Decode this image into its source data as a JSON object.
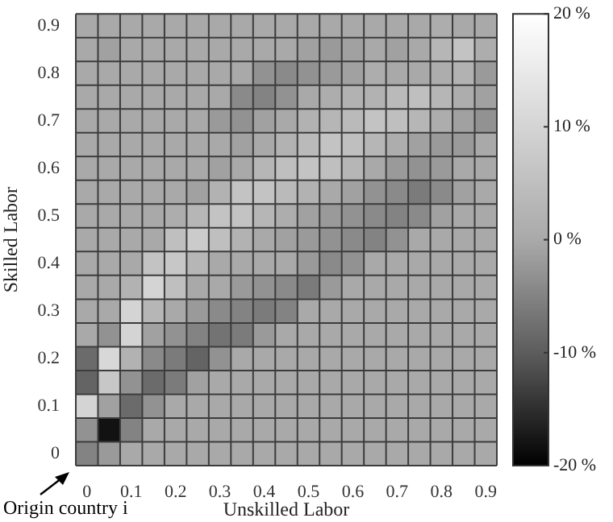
{
  "chart_data": {
    "type": "heatmap",
    "xlabel": "Unskilled Labor",
    "ylabel": "Skilled Labor",
    "annotations": [
      "Origin country i"
    ],
    "grid": true,
    "categories": [
      "0",
      null,
      "0.1",
      null,
      "0.2",
      null,
      "0.3",
      null,
      "0.4",
      null,
      "0.5",
      null,
      "0.6",
      null,
      "0.7",
      null,
      "0.8",
      null,
      "0.9"
    ],
    "y_categories": [
      "0.9",
      null,
      "0.8",
      null,
      "0.7",
      null,
      "0.6",
      null,
      "0.5",
      null,
      "0.4",
      null,
      "0.3",
      null,
      "0.2",
      null,
      "0.1",
      null,
      "0"
    ],
    "clim": [
      -20,
      20
    ],
    "cticks": [
      {
        "value": 20,
        "label": "20 %"
      },
      {
        "value": 10,
        "label": "10 %"
      },
      {
        "value": 0,
        "label": "0 %"
      },
      {
        "value": -10,
        "label": "-10 %"
      },
      {
        "value": -20,
        "label": "-20 %"
      }
    ],
    "cells": [
      [
        0,
        0,
        0,
        0,
        0,
        0,
        0,
        0,
        0,
        0,
        0,
        0,
        0,
        0,
        0,
        0,
        1,
        0,
        0
      ],
      [
        0,
        -1,
        0,
        0,
        0,
        0,
        0,
        0,
        0,
        0,
        -1,
        -2,
        -1,
        0,
        -1,
        0,
        3,
        6,
        1
      ],
      [
        0,
        0,
        0,
        0,
        0,
        0,
        0,
        0,
        -3,
        -4,
        -3,
        -2,
        -1,
        1,
        0,
        0,
        1,
        2,
        -2
      ],
      [
        0,
        0,
        0,
        0,
        0,
        0,
        0,
        -4,
        -5,
        -3,
        0,
        1,
        2,
        2,
        4,
        5,
        3,
        1,
        -1
      ],
      [
        0,
        0,
        0,
        0,
        0,
        0,
        -2,
        -3,
        -1,
        0,
        2,
        3,
        4,
        6,
        5,
        3,
        1,
        -1,
        -3
      ],
      [
        0,
        0,
        0,
        0,
        0,
        0,
        0,
        -1,
        0,
        2,
        4,
        6,
        5,
        3,
        1,
        -1,
        -2,
        -2,
        0
      ],
      [
        0,
        0,
        0,
        0,
        0,
        0,
        -1,
        0,
        3,
        5,
        6,
        5,
        3,
        0,
        -2,
        -3,
        -2,
        0,
        0
      ],
      [
        0,
        0,
        0,
        0,
        0,
        -1,
        2,
        6,
        6,
        4,
        2,
        0,
        -1,
        -3,
        -4,
        -6,
        -4,
        -1,
        0
      ],
      [
        0,
        0,
        0,
        0,
        1,
        3,
        6,
        6,
        3,
        1,
        -1,
        -2,
        -3,
        -4,
        -5,
        -4,
        -1,
        0,
        0
      ],
      [
        0,
        0,
        0,
        0,
        5,
        8,
        5,
        2,
        0,
        -1,
        -2,
        -3,
        -4,
        -5,
        -3,
        0,
        0,
        0,
        0
      ],
      [
        0,
        0,
        0,
        6,
        7,
        3,
        0,
        0,
        0,
        0,
        -2,
        -4,
        -3,
        0,
        0,
        0,
        0,
        0,
        0
      ],
      [
        0,
        0,
        2,
        10,
        5,
        0,
        0,
        -2,
        -3,
        -4,
        -6,
        -2,
        0,
        0,
        0,
        0,
        0,
        0,
        0
      ],
      [
        0,
        0,
        10,
        3,
        0,
        -2,
        -4,
        -5,
        -6,
        -5,
        0,
        0,
        0,
        0,
        0,
        0,
        0,
        0,
        0
      ],
      [
        0,
        -3,
        10,
        -1,
        -3,
        -5,
        -7,
        -6,
        -2,
        0,
        0,
        0,
        0,
        0,
        0,
        0,
        0,
        0,
        0
      ],
      [
        -8,
        11,
        2,
        -4,
        -6,
        -9,
        -3,
        0,
        0,
        0,
        0,
        0,
        0,
        0,
        0,
        0,
        0,
        0,
        0
      ],
      [
        -9,
        7,
        -3,
        -8,
        -6,
        -1,
        0,
        0,
        0,
        0,
        0,
        0,
        0,
        0,
        0,
        0,
        0,
        0,
        0
      ],
      [
        10,
        -1,
        -8,
        -3,
        0,
        0,
        0,
        0,
        0,
        0,
        0,
        0,
        0,
        0,
        0,
        0,
        0,
        0,
        0
      ],
      [
        -3,
        -18,
        -5,
        0,
        0,
        0,
        0,
        0,
        0,
        0,
        0,
        0,
        0,
        0,
        0,
        0,
        0,
        0,
        0
      ],
      [
        -5,
        -2,
        0,
        0,
        0,
        0,
        0,
        0,
        0,
        0,
        0,
        0,
        0,
        0,
        0,
        0,
        0,
        0,
        0
      ]
    ]
  }
}
